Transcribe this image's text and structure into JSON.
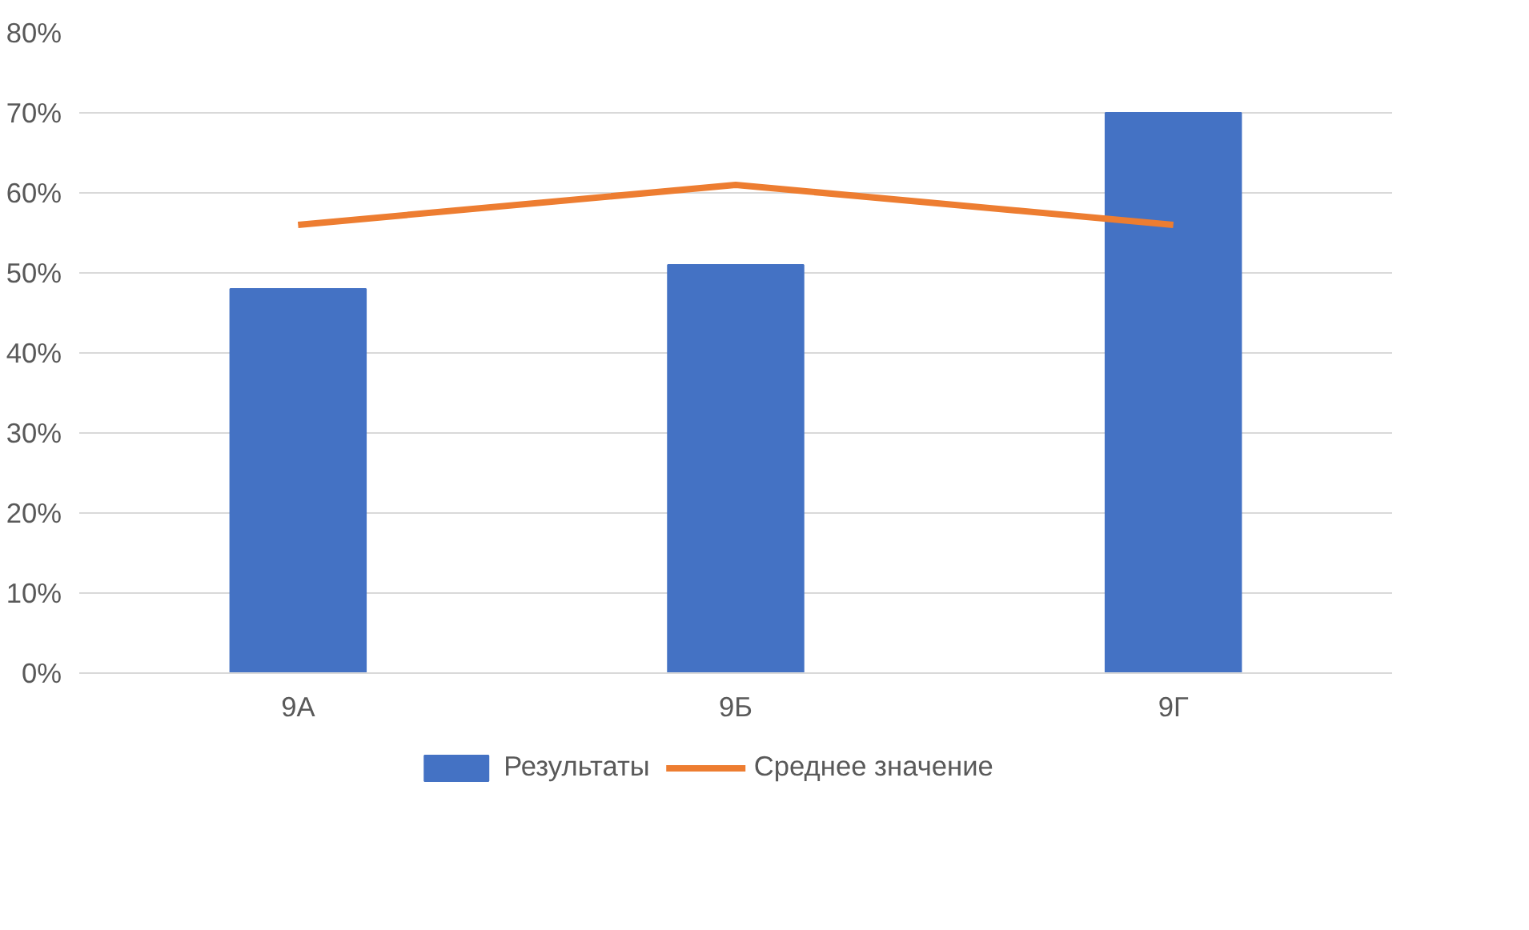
{
  "chart_data": {
    "type": "bar",
    "categories": [
      "9А",
      "9Б",
      "9Г"
    ],
    "series": [
      {
        "name": "Результаты",
        "color": "#4472c4",
        "values": [
          48,
          51,
          70
        ]
      },
      {
        "name": "Среднее значение",
        "type": "line",
        "color": "#ed7d31",
        "values": [
          56,
          61,
          56
        ]
      }
    ],
    "ylim": [
      0,
      80
    ],
    "yticks": [
      {
        "value": 0,
        "label": "0%"
      },
      {
        "value": 10,
        "label": "10%"
      },
      {
        "value": 20,
        "label": "20%"
      },
      {
        "value": 30,
        "label": "30%"
      },
      {
        "value": 40,
        "label": "40%"
      },
      {
        "value": 50,
        "label": "50%"
      },
      {
        "value": 60,
        "label": "60%"
      },
      {
        "value": 70,
        "label": "70%"
      },
      {
        "value": 80,
        "label": "80%"
      }
    ],
    "grid": "y",
    "legend": "bottom"
  }
}
